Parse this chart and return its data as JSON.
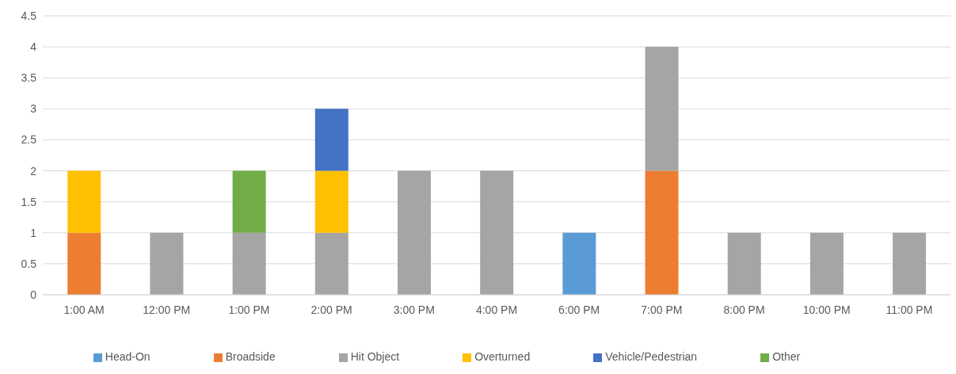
{
  "chart_data": {
    "type": "bar",
    "stacked": true,
    "categories": [
      "1:00 AM",
      "12:00 PM",
      "1:00 PM",
      "2:00 PM",
      "3:00 PM",
      "4:00 PM",
      "6:00 PM",
      "7:00 PM",
      "8:00 PM",
      "10:00 PM",
      "11:00 PM"
    ],
    "series": [
      {
        "name": "Head-On",
        "color": "#5b9bd5",
        "values": [
          null,
          null,
          null,
          null,
          null,
          null,
          1,
          null,
          null,
          null,
          null
        ]
      },
      {
        "name": "Broadside",
        "color": "#ed7d31",
        "values": [
          1,
          null,
          null,
          null,
          null,
          null,
          null,
          2,
          null,
          null,
          null
        ]
      },
      {
        "name": "Hit Object",
        "color": "#a5a5a5",
        "values": [
          null,
          1,
          1,
          1,
          2,
          2,
          null,
          2,
          1,
          1,
          1
        ]
      },
      {
        "name": "Overturned",
        "color": "#ffc000",
        "values": [
          1,
          null,
          null,
          1,
          null,
          null,
          null,
          null,
          null,
          null,
          null
        ]
      },
      {
        "name": "Vehicle/Pedestrian",
        "color": "#4472c4",
        "values": [
          null,
          null,
          null,
          1,
          null,
          null,
          null,
          null,
          null,
          null,
          null
        ]
      },
      {
        "name": "Other",
        "color": "#70ad47",
        "values": [
          null,
          null,
          1,
          null,
          null,
          null,
          null,
          null,
          null,
          null,
          null
        ]
      }
    ],
    "ylim": [
      0,
      4.5
    ],
    "yticks": [
      0,
      0.5,
      1,
      1.5,
      2,
      2.5,
      3,
      3.5,
      4,
      4.5
    ],
    "grid": "y",
    "legend": "bottom"
  }
}
